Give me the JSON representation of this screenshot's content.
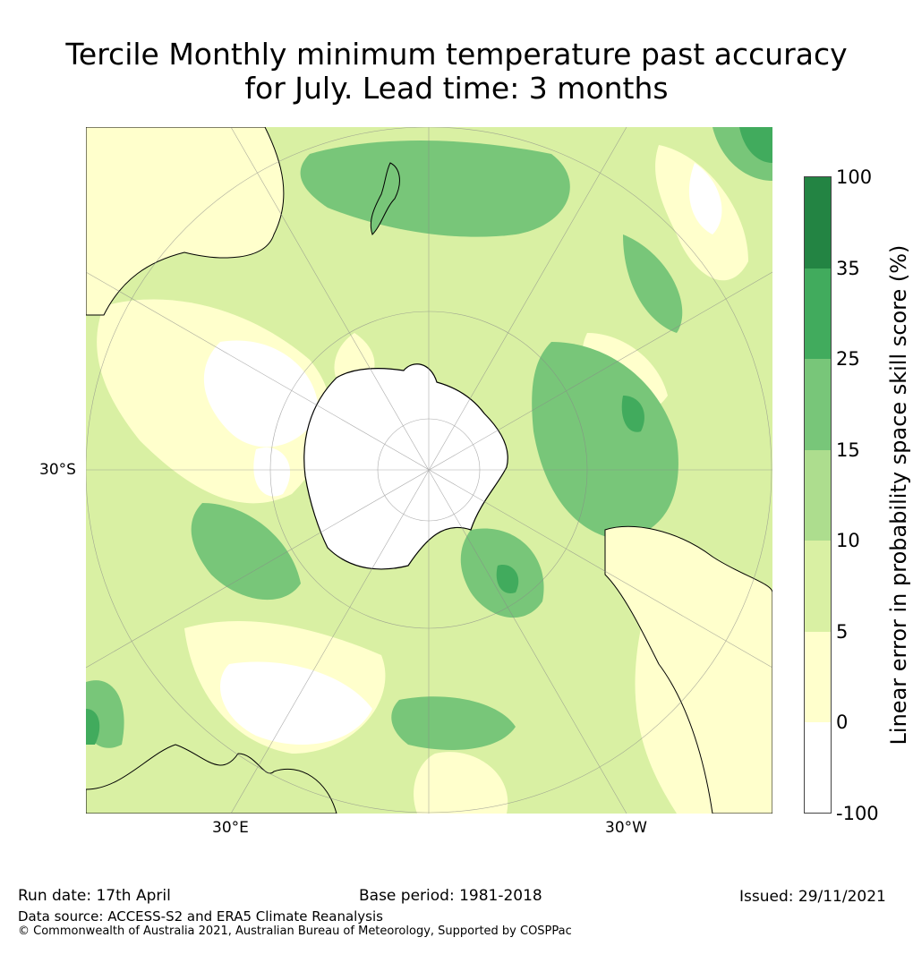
{
  "title": {
    "line1": "Tercile Monthly minimum temperature past accuracy",
    "line2": "for July. Lead time: 3 months"
  },
  "map": {
    "projection": "south-polar-stereographic",
    "lat_label": "30°S",
    "lon_label_east": "30°E",
    "lon_label_west": "30°W",
    "ocean_color": "#d9f0a3",
    "land_outline_color": "#000000"
  },
  "colorbar": {
    "title": "Linear error in probability space skill score (%)",
    "ticks": [
      "100",
      "35",
      "25",
      "15",
      "10",
      "5",
      "0",
      "-100"
    ],
    "colors": [
      "#238443",
      "#41ab5d",
      "#78c679",
      "#addd8e",
      "#d9f0a3",
      "#ffffcc",
      "#ffffff"
    ]
  },
  "footer": {
    "run_date": "Run date: 17th April",
    "base_period": "Base period: 1981-2018",
    "issued": "Issued: 29/11/2021",
    "data_source": "Data source: ACCESS-S2 and ERA5 Climate Reanalysis",
    "copyright": "© Commonwealth of Australia 2021, Australian Bureau of Meteorology, Supported by COSPPac"
  }
}
